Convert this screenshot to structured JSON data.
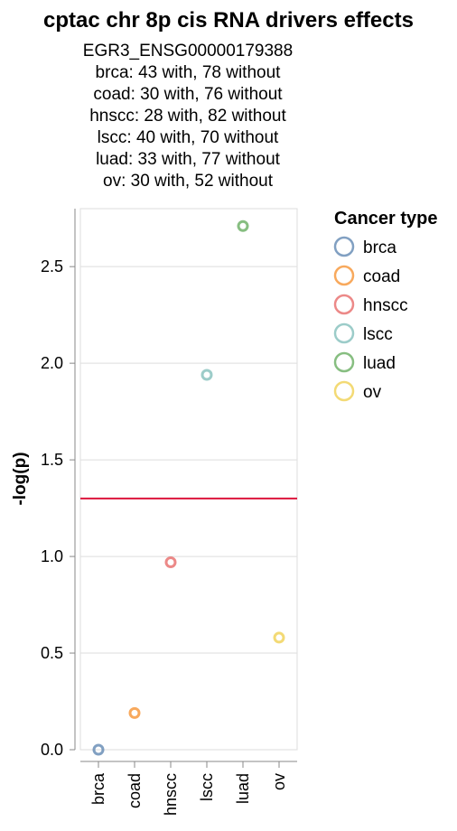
{
  "chart_data": {
    "type": "scatter",
    "title": "cptac chr 8p cis RNA drivers effects",
    "subtitle": [
      "EGR3_ENSG00000179388",
      "brca: 43 with, 78 without",
      "coad: 30 with, 76 without",
      "hnscc: 28 with, 82 without",
      "lscc: 40 with, 70 without",
      "luad: 33 with, 77 without",
      "ov: 30 with, 52 without"
    ],
    "xlabel": "",
    "ylabel": "-log(p)",
    "categories": [
      "brca",
      "coad",
      "hnscc",
      "lscc",
      "luad",
      "ov"
    ],
    "values": [
      0.0,
      0.19,
      0.97,
      1.94,
      2.71,
      0.58
    ],
    "ylim": [
      0,
      2.8
    ],
    "yticks": [
      "0.0",
      "0.5",
      "1.0",
      "1.5",
      "2.0",
      "2.5"
    ],
    "threshold": 1.3,
    "threshold_color": "#dc143c",
    "grid": true,
    "legend_title": "Cancer type",
    "legend_position": "right",
    "colors": [
      "#4c78a8",
      "#f58518",
      "#e45756",
      "#72b7b2",
      "#54a24b",
      "#eeca3b"
    ]
  }
}
